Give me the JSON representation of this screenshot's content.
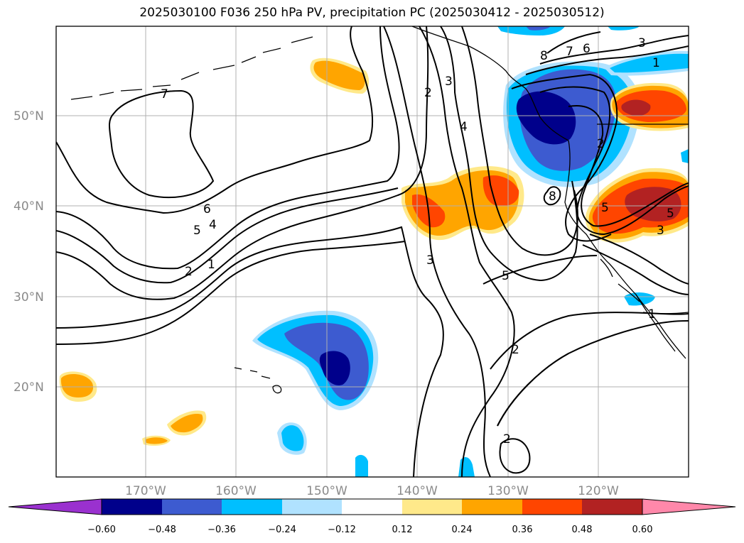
{
  "title": "2025030100 F036 250 hPa PV, precipitation PC (2025030412 - 2025030512)",
  "lat_labels": [
    "50°N",
    "40°N",
    "30°N",
    "20°N"
  ],
  "lon_labels": [
    "170°W",
    "160°W",
    "150°W",
    "140°W",
    "130°W",
    "120°W"
  ],
  "colorbar": {
    "tick_labels": [
      "−0.60",
      "−0.48",
      "−0.36",
      "−0.24",
      "−0.12",
      "0.12",
      "0.24",
      "0.36",
      "0.48",
      "0.60"
    ],
    "colors": [
      "#9a31cf",
      "#00008b",
      "#3d5bd0",
      "#00bfff",
      "#b0e2ff",
      "#ffffff",
      "#ffe98a",
      "#ffa500",
      "#ff4500",
      "#b22222",
      "#ff88aa"
    ]
  },
  "contour_labels": [
    "7",
    "6",
    "5",
    "4",
    "2",
    "1",
    "3",
    "2",
    "3",
    "4",
    "8",
    "7",
    "6",
    "3",
    "1",
    "2",
    "8",
    "5",
    "3",
    "5",
    "2",
    "2",
    "1",
    "5"
  ],
  "colors": {
    "gridline": "#b0b0b0",
    "contour": "#000000",
    "coast": "#000000"
  }
}
